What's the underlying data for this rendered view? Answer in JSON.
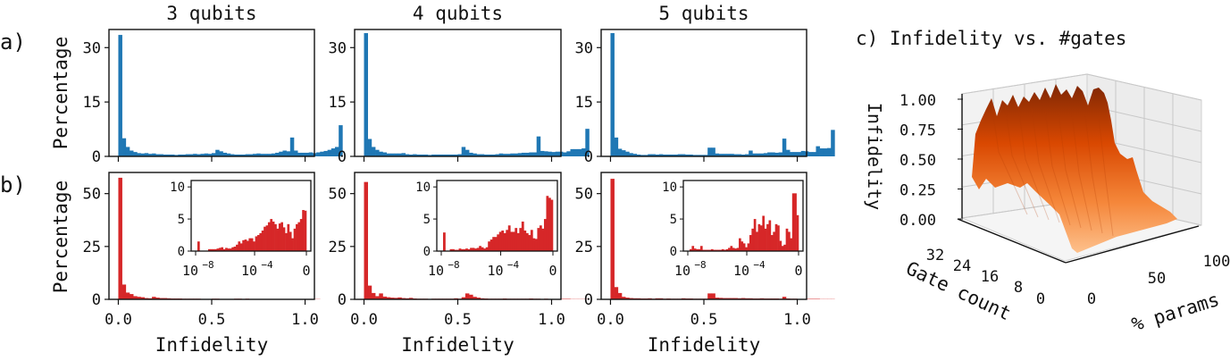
{
  "panel_labels": {
    "a": "a)",
    "b": "b)",
    "c": "c) Infidelity vs. #gates"
  },
  "columns": [
    {
      "title": "3 qubits"
    },
    {
      "title": "4 qubits"
    },
    {
      "title": "5 qubits"
    }
  ],
  "colors": {
    "row_a": "#1f77b4",
    "row_b": "#d62728",
    "surface_dark": "#7f2704",
    "surface_light": "#fdae6b"
  },
  "chart_data": [
    {
      "type": "bar",
      "title": "3 qubits",
      "row": "a",
      "ylabel": "Percentage",
      "xlabel": "",
      "ylim": [
        0,
        35
      ],
      "yticks": [
        0,
        15,
        30
      ],
      "xticks": [
        0.0,
        0.5,
        1.0
      ],
      "xlim": [
        -0.05,
        1.05
      ],
      "bin_width": 0.02,
      "values": [
        33.5,
        5.0,
        2.6,
        1.6,
        1.2,
        0.9,
        0.8,
        0.9,
        0.7,
        0.8,
        0.6,
        0.6,
        0.5,
        0.5,
        0.5,
        0.4,
        0.5,
        0.5,
        0.6,
        0.6,
        0.7,
        0.6,
        0.7,
        0.8,
        0.7,
        0.9,
        1.8,
        1.4,
        1.0,
        0.8,
        0.6,
        0.5,
        0.5,
        0.5,
        0.6,
        0.6,
        0.7,
        0.8,
        0.7,
        0.7,
        0.7,
        0.8,
        1.0,
        1.3,
        1.6,
        1.4,
        5.2,
        1.6,
        1.0,
        1.0,
        1.0,
        1.1,
        0.9,
        1.1,
        1.3,
        1.5,
        1.8,
        2.2,
        2.6,
        8.6
      ]
    },
    {
      "type": "bar",
      "title": "4 qubits",
      "row": "a",
      "ylabel": "",
      "xlabel": "",
      "ylim": [
        0,
        35
      ],
      "yticks": [
        0,
        15,
        30
      ],
      "xticks": [
        0.0,
        0.5,
        1.0
      ],
      "bin_width": 0.02,
      "values": [
        34.0,
        4.8,
        2.6,
        1.8,
        1.3,
        1.1,
        0.8,
        0.8,
        0.8,
        0.8,
        0.9,
        0.6,
        0.5,
        0.6,
        0.5,
        0.5,
        0.5,
        0.4,
        0.5,
        0.5,
        0.5,
        0.5,
        0.5,
        0.5,
        0.5,
        0.6,
        2.6,
        1.8,
        1.0,
        0.8,
        0.6,
        0.6,
        0.5,
        0.5,
        0.5,
        0.6,
        0.8,
        0.7,
        0.7,
        0.8,
        0.8,
        0.9,
        1.0,
        1.0,
        1.1,
        1.1,
        5.5,
        1.5,
        1.4,
        1.3,
        1.2,
        1.3,
        1.3,
        1.1,
        1.4,
        2.0,
        2.0,
        2.0,
        2.2,
        7.6
      ]
    },
    {
      "type": "bar",
      "title": "5 qubits",
      "row": "a",
      "ylabel": "",
      "xlabel": "",
      "ylim": [
        0,
        35
      ],
      "yticks": [
        0,
        15,
        30
      ],
      "xticks": [
        0.0,
        0.5,
        1.0
      ],
      "bin_width": 0.02,
      "values": [
        34.0,
        5.2,
        2.1,
        1.7,
        1.3,
        0.9,
        0.7,
        0.5,
        0.4,
        0.4,
        0.6,
        0.6,
        0.5,
        0.6,
        0.5,
        0.5,
        0.5,
        0.5,
        0.6,
        0.6,
        0.5,
        0.5,
        0.4,
        0.4,
        0.4,
        0.4,
        2.4,
        2.4,
        0.8,
        0.7,
        0.7,
        0.7,
        0.7,
        0.6,
        0.6,
        0.5,
        0.6,
        1.6,
        0.8,
        0.8,
        0.8,
        0.9,
        1.1,
        1.1,
        1.0,
        1.1,
        4.9,
        1.8,
        1.2,
        1.2,
        1.2,
        1.5,
        1.4,
        1.2,
        1.2,
        2.8,
        2.2,
        2.2,
        2.3,
        7.3
      ]
    },
    {
      "type": "bar",
      "title": "",
      "row": "b",
      "ylabel": "Percentage",
      "xlabel": "Infidelity",
      "ylim": [
        0,
        60
      ],
      "yticks": [
        0,
        25,
        50
      ],
      "xticks": [
        0.0,
        0.5,
        1.0
      ],
      "xticklabels": [
        "0.0",
        "0.5",
        "1.0"
      ],
      "bin_width": 0.02,
      "values": [
        57.5,
        7.0,
        3.2,
        2.5,
        1.5,
        1.2,
        1.0,
        0.6,
        0.5,
        1.2,
        0.8,
        0.6,
        0.6,
        0.5,
        0.4,
        0.4,
        0.4,
        0.3,
        0.3,
        0.3,
        0.3,
        0.3,
        0.2,
        0.2,
        0.2,
        0.3,
        0.3,
        0.2,
        0.2,
        0.2,
        0.2,
        0.3,
        0.3,
        0.2,
        0.3,
        0.2,
        0.2,
        0.2,
        0.2,
        0.2,
        0.2,
        0.2,
        0.2,
        0.2,
        0.2,
        0.1,
        0.1,
        0.1,
        0.1,
        0.1,
        0.1,
        0.1,
        0.1,
        0.1,
        0.0,
        0.0,
        0.0,
        0.0,
        0.0,
        0.0
      ],
      "inset": {
        "type": "bar",
        "xscale": "log",
        "ylim": [
          0,
          11
        ],
        "yticks": [
          0,
          5,
          10
        ],
        "xticklabels": [
          "10^-8",
          "10^-4",
          "0"
        ],
        "values": [
          1.5,
          0,
          0,
          0,
          0,
          0.3,
          0.3,
          0.3,
          0.3,
          0.4,
          0.5,
          0.6,
          0.3,
          0.5,
          0.4,
          0.4,
          0.6,
          0.7,
          1.0,
          1.5,
          1.2,
          1.7,
          1.8,
          1.6,
          2.0,
          2.0,
          1.5,
          2.3,
          2.5,
          2.8,
          3.2,
          3.8,
          4.0,
          4.5,
          5.0,
          4.6,
          4.2,
          3.5,
          4.3,
          4.5,
          3.7,
          2.8,
          4.2,
          3.0,
          2.0,
          3.5,
          4.2,
          4.5,
          5.0,
          6.4,
          6.3
        ]
      }
    },
    {
      "type": "bar",
      "title": "",
      "row": "b",
      "ylabel": "",
      "xlabel": "Infidelity",
      "ylim": [
        0,
        60
      ],
      "yticks": [
        0,
        25,
        50
      ],
      "xticks": [
        0.0,
        0.5,
        1.0
      ],
      "bin_width": 0.02,
      "values": [
        55.5,
        6.5,
        3.0,
        1.5,
        2.8,
        1.3,
        1.0,
        0.8,
        0.7,
        0.9,
        0.6,
        0.5,
        0.7,
        0.4,
        0.3,
        0.3,
        0.3,
        0.2,
        0.3,
        0.3,
        0.3,
        0.3,
        0.3,
        0.3,
        0.5,
        0.3,
        1.0,
        2.8,
        2.2,
        1.2,
        0.8,
        0.5,
        0.4,
        0.3,
        0.3,
        0.3,
        0.3,
        0.4,
        0.3,
        0.3,
        0.3,
        0.3,
        0.3,
        0.3,
        0.4,
        0.3,
        0.3,
        0.2,
        0.3,
        0.2,
        0.2,
        0.2,
        0.2,
        0.2,
        0.2,
        0.1,
        0.1,
        0.1,
        0.1,
        0.1
      ],
      "inset": {
        "type": "bar",
        "xscale": "log",
        "ylim": [
          0,
          11
        ],
        "yticks": [
          0,
          5,
          10
        ],
        "xticklabels": [
          "10^-8",
          "10^-4",
          "0"
        ],
        "values": [
          2.9,
          0,
          0,
          0.3,
          0.3,
          0.2,
          0.2,
          0.4,
          0.3,
          0.3,
          0.4,
          0.3,
          0.5,
          0.5,
          0.4,
          0.5,
          0.8,
          0.6,
          0.4,
          0.6,
          1.5,
          1.8,
          2.2,
          2.2,
          2.6,
          3.0,
          3.2,
          2.8,
          3.3,
          4.0,
          3.0,
          3.0,
          3.6,
          2.8,
          3.6,
          4.6,
          3.2,
          2.8,
          2.5,
          3.3,
          2.0,
          1.9,
          3.6,
          4.0,
          3.5,
          5.0,
          8.6,
          8.3,
          8.0
        ]
      }
    },
    {
      "type": "bar",
      "title": "",
      "row": "b",
      "ylabel": "",
      "xlabel": "Infidelity",
      "ylim": [
        0,
        60
      ],
      "yticks": [
        0,
        25,
        50
      ],
      "xticks": [
        0.0,
        0.5,
        1.0
      ],
      "bin_width": 0.02,
      "values": [
        57.0,
        5.8,
        3.0,
        1.2,
        0.8,
        0.6,
        0.5,
        0.5,
        0.4,
        0.4,
        0.5,
        0.3,
        0.5,
        0.5,
        0.3,
        0.4,
        0.3,
        0.3,
        0.3,
        0.5,
        0.4,
        0.4,
        0.3,
        0.3,
        0.3,
        0.3,
        2.8,
        2.8,
        0.8,
        0.7,
        0.6,
        0.6,
        0.6,
        0.6,
        0.5,
        0.6,
        0.5,
        0.5,
        0.4,
        0.4,
        0.5,
        0.4,
        0.4,
        0.4,
        0.4,
        0.3,
        1.2,
        0.4,
        0.3,
        0.3,
        0.2,
        0.2,
        0.2,
        0.2,
        0.2,
        0.2,
        0.1,
        0.1,
        0.1,
        0.1
      ],
      "inset": {
        "type": "bar",
        "xscale": "log",
        "ylim": [
          0,
          11
        ],
        "yticks": [
          0,
          5,
          10
        ],
        "xticklabels": [
          "10^-8",
          "10^-4",
          "0"
        ],
        "values": [
          0.3,
          0.8,
          0.4,
          0.3,
          0.3,
          0.8,
          0.2,
          0.2,
          0.2,
          0.2,
          0.3,
          0.2,
          0.2,
          0.2,
          0.2,
          0.3,
          0.2,
          0.3,
          0.5,
          0.8,
          0.5,
          0.4,
          0.5,
          2.0,
          1.5,
          1.2,
          0.6,
          1.2,
          2.5,
          3.5,
          5.0,
          3.0,
          4.2,
          4.0,
          5.5,
          3.5,
          4.2,
          4.8,
          2.5,
          3.0,
          4.2,
          4.0,
          1.6,
          0.8,
          1.0,
          3.5,
          3.0,
          2.0,
          9.0,
          9.0,
          5.6
        ]
      }
    },
    {
      "type": "surface",
      "title": "c) Infidelity vs. #gates",
      "xlabel": "% params",
      "ylabel": "Gate count",
      "zlabel": "Infidelity",
      "xticks": [
        0,
        50,
        100
      ],
      "yticks": [
        0,
        8,
        16,
        24,
        32
      ],
      "zticks": [
        0.0,
        0.25,
        0.5,
        0.75,
        1.0
      ],
      "zlim": [
        0,
        1
      ],
      "colormap": "Oranges",
      "description": "Infidelity near 1.0 for low % params, dropping to ~0 around 50-60% params across all gate counts"
    }
  ],
  "axis_text": {
    "row_a_ylabel": "Percentage",
    "row_b_ylabel": "Percentage",
    "xlabel": "Infidelity",
    "a_yticks": [
      "0",
      "15",
      "30"
    ],
    "b_yticks": [
      "0",
      "25",
      "50"
    ],
    "b_xticks": [
      "0.0",
      "0.5",
      "1.0"
    ],
    "inset_yticks": [
      "0",
      "5",
      "10"
    ],
    "inset_xticks": [
      "10",
      "10",
      "0"
    ],
    "inset_xtick_exps": [
      "−8",
      "−4"
    ],
    "surface_zlabel": "Infidelity",
    "surface_zticks": [
      "1.00",
      "0.75",
      "0.50",
      "0.25",
      "0.00"
    ],
    "surface_yticks": [
      "32",
      "24",
      "16",
      "8",
      "0"
    ],
    "surface_xticks": [
      "0",
      "50",
      "100"
    ],
    "surface_ylabel": "Gate count",
    "surface_xlabel": "% params"
  }
}
